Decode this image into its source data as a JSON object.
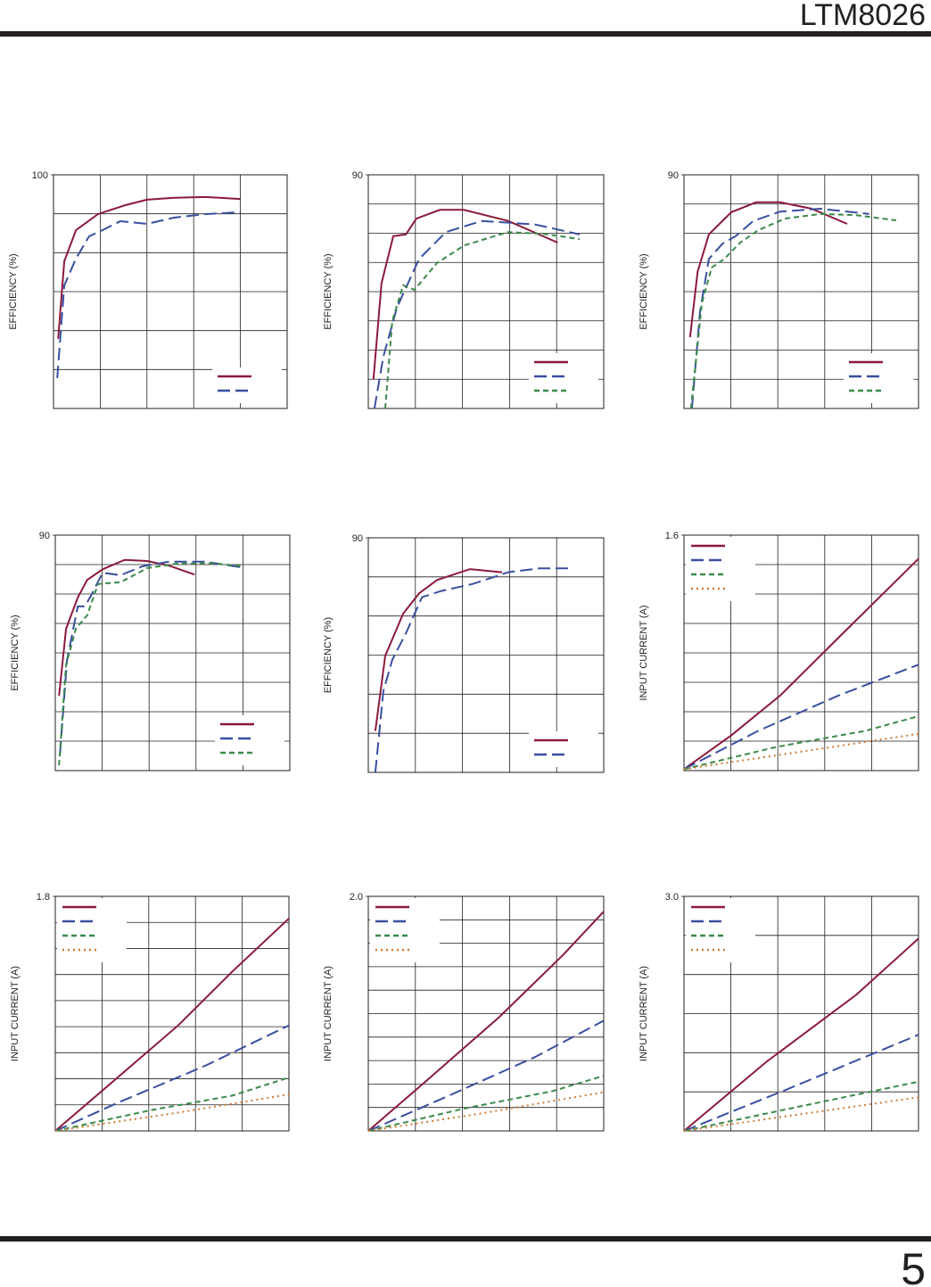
{
  "header": {
    "title": "LTM8026"
  },
  "page_number": "5",
  "chart_data": [
    {
      "type": "line",
      "y_label": "EFFICIENCY (%)",
      "ylim": [
        40,
        100
      ],
      "yticks": [
        100
      ],
      "xlim": [
        0,
        5
      ],
      "legend": "lower right",
      "grid": true,
      "series": [
        {
          "color": "#8b1a3a",
          "x": [
            0.1,
            0.23,
            0.48,
            0.95,
            1.53,
            2.0,
            2.58,
            3.24,
            4.0
          ],
          "values": [
            57.9,
            77.8,
            85.8,
            89.9,
            92.2,
            93.6,
            94.1,
            94.3,
            93.8
          ]
        },
        {
          "color": "#3a4fa0",
          "x": [
            0.08,
            0.23,
            0.48,
            0.76,
            1.05,
            1.43,
            2.0,
            2.58,
            3.24,
            4.0
          ],
          "values": [
            47.8,
            71.6,
            78.5,
            84.2,
            85.8,
            88.1,
            87.4,
            89.0,
            89.9,
            90.4
          ]
        }
      ]
    },
    {
      "type": "line",
      "y_label": "EFFICIENCY (%)",
      "ylim": [
        50,
        90
      ],
      "yticks": [
        90
      ],
      "xlim": [
        0,
        5
      ],
      "legend": "lower right",
      "grid": true,
      "series": [
        {
          "color": "#8b1a3a",
          "x": [
            0.11,
            0.28,
            0.53,
            0.8,
            1.02,
            1.52,
            2.03,
            2.97,
            4.02
          ],
          "values": [
            55.0,
            71.4,
            79.5,
            79.8,
            82.5,
            84.0,
            84.0,
            82.1,
            78.4
          ]
        },
        {
          "color": "#3a4fa0",
          "x": [
            0.13,
            0.32,
            0.61,
            1.08,
            1.65,
            2.41,
            3.54,
            4.49
          ],
          "values": [
            50,
            58.9,
            67.3,
            75.6,
            80.2,
            82.1,
            81.5,
            79.8
          ]
        },
        {
          "color": "#3a8a4a",
          "x": [
            0.36,
            0.51,
            0.74,
            0.98,
            1.46,
            2.03,
            2.97,
            3.73,
            4.49
          ],
          "values": [
            50,
            65.0,
            71.1,
            70.3,
            74.9,
            77.9,
            80.2,
            79.9,
            79.0
          ]
        }
      ]
    },
    {
      "type": "line",
      "y_label": "EFFICIENCY (%)",
      "ylim": [
        50,
        90
      ],
      "yticks": [
        90
      ],
      "xlim": [
        0,
        5
      ],
      "legend": "lower right",
      "grid": true,
      "series": [
        {
          "color": "#8b1a3a",
          "x": [
            0.13,
            0.29,
            0.53,
            1.01,
            1.54,
            2.05,
            2.72,
            3.48
          ],
          "values": [
            62.2,
            73.4,
            79.8,
            83.6,
            85.3,
            85.3,
            84.2,
            81.6
          ]
        },
        {
          "color": "#3a4fa0",
          "x": [
            0.17,
            0.34,
            0.53,
            0.82,
            1.1,
            1.48,
            2.05,
            2.91,
            3.95
          ],
          "values": [
            50,
            66.5,
            75.6,
            78.2,
            79.5,
            82.1,
            83.7,
            84.2,
            83.3
          ]
        },
        {
          "color": "#3a8a4a",
          "x": [
            0.15,
            0.38,
            0.59,
            0.86,
            1.2,
            1.58,
            2.15,
            2.91,
            3.67,
            4.52
          ],
          "values": [
            50,
            68.0,
            74.1,
            75.6,
            78.4,
            80.5,
            82.5,
            83.3,
            83.1,
            82.2
          ]
        }
      ]
    },
    {
      "type": "line",
      "y_label": "EFFICIENCY (%)",
      "ylim": [
        50,
        90
      ],
      "yticks": [
        90
      ],
      "xlim": [
        0,
        5
      ],
      "legend": "lower right",
      "grid": true,
      "series": [
        {
          "color": "#8b1a3a",
          "x": [
            0.08,
            0.23,
            0.48,
            0.68,
            1.01,
            1.48,
            1.96,
            2.43,
            2.97
          ],
          "values": [
            62.7,
            74.1,
            79.4,
            82.4,
            84.2,
            85.8,
            85.6,
            84.8,
            83.3
          ]
        },
        {
          "color": "#3a4fa0",
          "x": [
            0.1,
            0.25,
            0.48,
            0.63,
            0.76,
            1.01,
            1.39,
            1.86,
            2.43,
            3.19,
            3.99
          ],
          "values": [
            52.9,
            68.8,
            77.9,
            77.9,
            79.7,
            83.6,
            83.2,
            84.7,
            85.5,
            85.5,
            84.5
          ]
        },
        {
          "color": "#3a8a4a",
          "x": [
            0.08,
            0.23,
            0.44,
            0.68,
            0.91,
            1.39,
            1.96,
            2.62,
            3.38,
            3.99
          ],
          "values": [
            50.9,
            68.0,
            74.1,
            76.4,
            81.7,
            82.0,
            84.4,
            85.2,
            85.2,
            84.7
          ]
        }
      ]
    },
    {
      "type": "line",
      "y_label": "EFFICIENCY (%)",
      "ylim": [
        60,
        90
      ],
      "yticks": [
        90
      ],
      "xlim": [
        0,
        5
      ],
      "legend": "lower right",
      "grid": true,
      "series": [
        {
          "color": "#8b1a3a",
          "x": [
            0.15,
            0.36,
            0.74,
            1.08,
            1.46,
            2.16,
            2.84
          ],
          "values": [
            65.3,
            74.9,
            80.3,
            82.9,
            84.6,
            86.0,
            85.6
          ]
        },
        {
          "color": "#3a4fa0",
          "x": [
            0.15,
            0.32,
            0.51,
            0.8,
            1.14,
            1.55,
            2.22,
            2.97,
            3.64,
            4.26
          ],
          "values": [
            60,
            70.4,
            74.4,
            77.8,
            82.4,
            83.2,
            84.1,
            85.6,
            86.1,
            86.1
          ]
        }
      ]
    },
    {
      "type": "line",
      "y_label": "INPUT CURRENT (A)",
      "ylim": [
        0,
        1.6
      ],
      "yticks": [
        1.6
      ],
      "xlim": [
        0,
        5
      ],
      "legend": "upper left",
      "grid": true,
      "series": [
        {
          "color": "#8b1a3a",
          "x": [
            0,
            1.01,
            2.05,
            3.38,
            5.0
          ],
          "values": [
            0.01,
            0.24,
            0.51,
            0.93,
            1.44
          ]
        },
        {
          "color": "#3a4fa0",
          "x": [
            0,
            1.58,
            3.29,
            5.0
          ],
          "values": [
            0.01,
            0.27,
            0.51,
            0.72
          ]
        },
        {
          "color": "#3a8a4a",
          "x": [
            0,
            1.96,
            3.86,
            5.0
          ],
          "values": [
            0.01,
            0.16,
            0.27,
            0.37
          ]
        },
        {
          "color": "#d07a30",
          "x": [
            0,
            2.53,
            5.0
          ],
          "values": [
            0.01,
            0.13,
            0.25
          ]
        }
      ]
    },
    {
      "type": "line",
      "y_label": "INPUT CURRENT (A)",
      "ylim": [
        0,
        1.8
      ],
      "yticks": [
        1.8
      ],
      "xlim": [
        0,
        5
      ],
      "legend": "upper left",
      "grid": true,
      "series": [
        {
          "color": "#8b1a3a",
          "x": [
            0,
            1.3,
            2.63,
            3.78,
            5.0
          ],
          "values": [
            0,
            0.4,
            0.81,
            1.22,
            1.63
          ]
        },
        {
          "color": "#3a4fa0",
          "x": [
            0,
            1.3,
            3.21,
            5.0
          ],
          "values": [
            0,
            0.21,
            0.5,
            0.81
          ]
        },
        {
          "color": "#3a8a4a",
          "x": [
            0,
            2.06,
            3.78,
            5.0
          ],
          "values": [
            0,
            0.16,
            0.27,
            0.41
          ]
        },
        {
          "color": "#d07a30",
          "x": [
            0,
            2.63,
            5.0
          ],
          "values": [
            0,
            0.14,
            0.28
          ]
        }
      ]
    },
    {
      "type": "line",
      "y_label": "INPUT CURRENT (A)",
      "ylim": [
        0,
        2
      ],
      "yticks": [
        {
          "value": 2,
          "label": "2.0"
        }
      ],
      "xlim": [
        0,
        5
      ],
      "legend": "upper left",
      "grid": true,
      "series": [
        {
          "color": "#8b1a3a",
          "x": [
            0,
            1.27,
            2.78,
            4.11,
            5.0
          ],
          "values": [
            0,
            0.44,
            0.97,
            1.49,
            1.87
          ]
        },
        {
          "color": "#3a4fa0",
          "x": [
            0,
            1.65,
            3.54,
            5.0
          ],
          "values": [
            0,
            0.29,
            0.63,
            0.94
          ]
        },
        {
          "color": "#3a8a4a",
          "x": [
            0,
            2.03,
            3.92,
            5.0
          ],
          "values": [
            0,
            0.19,
            0.34,
            0.47
          ]
        },
        {
          "color": "#d07a30",
          "x": [
            0,
            2.41,
            5.0
          ],
          "values": [
            0,
            0.15,
            0.33
          ]
        }
      ]
    },
    {
      "type": "line",
      "y_label": "INPUT CURRENT (A)",
      "ylim": [
        0,
        3
      ],
      "yticks": [
        {
          "value": 3,
          "label": "3.0"
        }
      ],
      "xlim": [
        0,
        5
      ],
      "legend": "upper left",
      "grid": true,
      "series": [
        {
          "color": "#8b1a3a",
          "x": [
            0,
            1.77,
            3.67,
            5.0
          ],
          "values": [
            0,
            0.89,
            1.74,
            2.46
          ]
        },
        {
          "color": "#3a4fa0",
          "x": [
            0,
            2.15,
            5.0
          ],
          "values": [
            0,
            0.52,
            1.23
          ]
        },
        {
          "color": "#3a8a4a",
          "x": [
            0,
            2.53,
            5.0
          ],
          "values": [
            0,
            0.32,
            0.63
          ]
        },
        {
          "color": "#d07a30",
          "x": [
            0,
            5.0
          ],
          "values": [
            0,
            0.43
          ]
        }
      ]
    }
  ]
}
